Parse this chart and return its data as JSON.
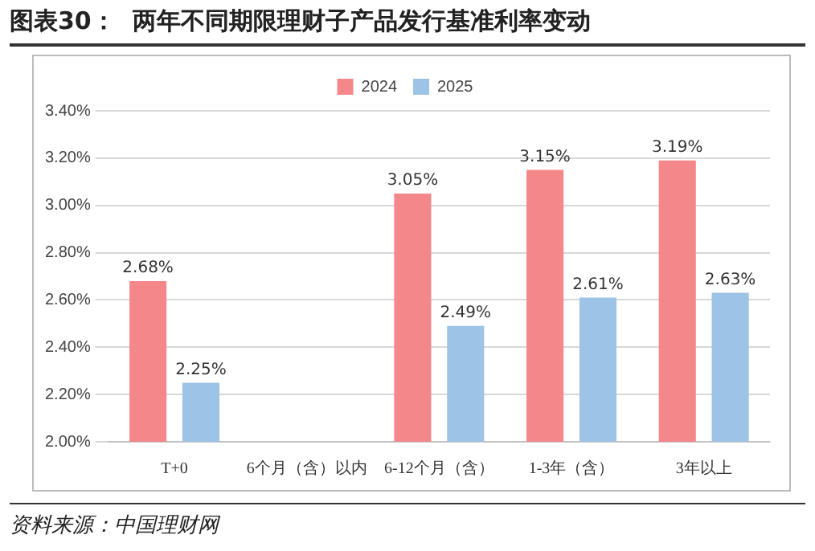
{
  "chart_data": {
    "type": "bar",
    "title": "图表30：  两年不同期限理财子产品发行基准利率变动",
    "categories": [
      "T+0",
      "6个月（含）以内",
      "6-12个月（含）",
      "1-3年（含）",
      "3年以上"
    ],
    "series": [
      {
        "name": "2024",
        "color": "#f4878a",
        "values": [
          2.68,
          null,
          3.05,
          3.15,
          3.19
        ],
        "value_labels": [
          "2.68%",
          null,
          "3.05%",
          "3.15%",
          "3.19%"
        ]
      },
      {
        "name": "2025",
        "color": "#9dc3e6",
        "values": [
          2.25,
          null,
          2.49,
          2.61,
          2.63
        ],
        "value_labels": [
          "2.25%",
          null,
          "2.49%",
          "2.61%",
          "2.63%"
        ]
      }
    ],
    "ylim": [
      2.0,
      3.4
    ],
    "yticks": [
      {
        "value": 2.0,
        "label": "2.00%"
      },
      {
        "value": 2.2,
        "label": "2.20%"
      },
      {
        "value": 2.4,
        "label": "2.40%"
      },
      {
        "value": 2.6,
        "label": "2.60%"
      },
      {
        "value": 2.8,
        "label": "2.80%"
      },
      {
        "value": 3.0,
        "label": "3.00%"
      },
      {
        "value": 3.2,
        "label": "3.20%"
      },
      {
        "value": 3.4,
        "label": "3.40%"
      }
    ],
    "grid": "y",
    "legend": "top",
    "annotations": [
      "资料来源：中国理财网"
    ]
  }
}
